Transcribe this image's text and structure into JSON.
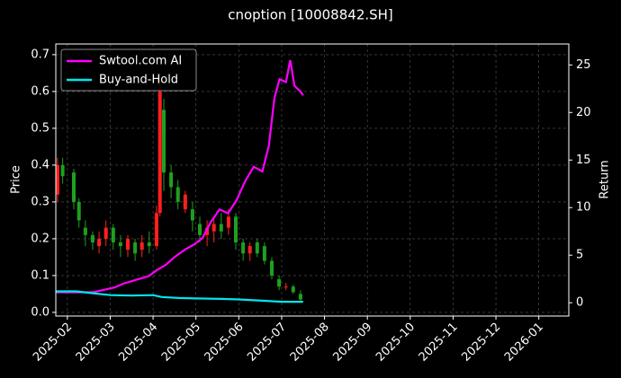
{
  "chart_data": {
    "type": "candlestick",
    "title": "cnoption [10008842.SH]",
    "y_label": "Price",
    "y2_label": "Return",
    "xlim": [
      -0.27,
      11.7
    ],
    "xticks": [
      {
        "value": 0,
        "label": "2025-02"
      },
      {
        "value": 1,
        "label": "2025-03"
      },
      {
        "value": 2,
        "label": "2025-04"
      },
      {
        "value": 3,
        "label": "2025-05"
      },
      {
        "value": 4,
        "label": "2025-06"
      },
      {
        "value": 5,
        "label": "2025-07"
      },
      {
        "value": 6,
        "label": "2025-08"
      },
      {
        "value": 7,
        "label": "2025-09"
      },
      {
        "value": 8,
        "label": "2025-10"
      },
      {
        "value": 9,
        "label": "2025-11"
      },
      {
        "value": 10,
        "label": "2025-12"
      },
      {
        "value": 11,
        "label": "2026-01"
      }
    ],
    "ylim": [
      -0.01,
      0.729
    ],
    "yticks": [
      {
        "value": 0,
        "label": "0.0"
      },
      0.1,
      0.2,
      0.3,
      0.4,
      0.5,
      0.6,
      0.7
    ],
    "y2lim": [
      -1.4,
      27.2
    ],
    "y2ticks": [
      0,
      5,
      10,
      15,
      20,
      25
    ],
    "grid": true,
    "legend": "upper left",
    "up_color": "#ff2020",
    "down_color": "#1fa01f",
    "candles": {
      "x": [
        -0.23,
        -0.11,
        0.15,
        0.27,
        0.42,
        0.59,
        0.74,
        0.9,
        1.07,
        1.24,
        1.41,
        1.58,
        1.74,
        1.91,
        2.08,
        2.16,
        2.25,
        2.42,
        2.58,
        2.75,
        2.92,
        3.09,
        3.26,
        3.42,
        3.59,
        3.76,
        3.93,
        4.1,
        4.26,
        4.43,
        4.6,
        4.77,
        4.94,
        5.1,
        5.27,
        5.44
      ],
      "open": [
        0.32,
        0.4,
        0.38,
        0.3,
        0.23,
        0.21,
        0.18,
        0.2,
        0.23,
        0.19,
        0.17,
        0.19,
        0.17,
        0.19,
        0.18,
        0.27,
        0.55,
        0.38,
        0.34,
        0.28,
        0.28,
        0.24,
        0.21,
        0.22,
        0.24,
        0.23,
        0.26,
        0.19,
        0.16,
        0.19,
        0.18,
        0.14,
        0.09,
        0.07,
        0.07,
        0.05
      ],
      "high": [
        0.42,
        0.42,
        0.39,
        0.31,
        0.25,
        0.22,
        0.22,
        0.25,
        0.24,
        0.21,
        0.21,
        0.2,
        0.21,
        0.22,
        0.29,
        0.65,
        0.58,
        0.4,
        0.36,
        0.33,
        0.3,
        0.26,
        0.25,
        0.26,
        0.27,
        0.28,
        0.27,
        0.2,
        0.19,
        0.2,
        0.19,
        0.15,
        0.1,
        0.08,
        0.075,
        0.06
      ],
      "low": [
        0.3,
        0.35,
        0.28,
        0.23,
        0.18,
        0.17,
        0.16,
        0.18,
        0.17,
        0.15,
        0.15,
        0.14,
        0.15,
        0.16,
        0.17,
        0.26,
        0.33,
        0.31,
        0.28,
        0.27,
        0.22,
        0.19,
        0.18,
        0.19,
        0.2,
        0.21,
        0.17,
        0.14,
        0.14,
        0.15,
        0.13,
        0.09,
        0.06,
        0.06,
        0.05,
        0.03
      ],
      "close": [
        0.4,
        0.37,
        0.3,
        0.25,
        0.21,
        0.19,
        0.2,
        0.23,
        0.19,
        0.18,
        0.2,
        0.16,
        0.19,
        0.18,
        0.27,
        0.6,
        0.38,
        0.34,
        0.3,
        0.32,
        0.25,
        0.21,
        0.23,
        0.24,
        0.22,
        0.26,
        0.19,
        0.16,
        0.18,
        0.16,
        0.14,
        0.1,
        0.07,
        0.07,
        0.055,
        0.035
      ]
    },
    "series": [
      {
        "name": "Swtool.com AI",
        "color": "#ff00ff",
        "axis": "y2",
        "x": [
          -0.27,
          0.2,
          0.6,
          0.9,
          1.1,
          1.3,
          1.6,
          1.9,
          2.08,
          2.3,
          2.5,
          2.75,
          2.95,
          3.15,
          3.35,
          3.55,
          3.75,
          3.95,
          4.15,
          4.35,
          4.55,
          4.7,
          4.83,
          4.95,
          5.1,
          5.2,
          5.3,
          5.44,
          5.5
        ],
        "values": [
          1.1,
          1.1,
          1.1,
          1.4,
          1.6,
          2.0,
          2.4,
          2.8,
          3.4,
          4.0,
          4.8,
          5.6,
          6.1,
          6.8,
          8.5,
          9.8,
          9.4,
          10.8,
          12.8,
          14.3,
          13.8,
          16.5,
          21.5,
          23.5,
          23.2,
          25.5,
          22.8,
          22.2,
          21.8
        ]
      },
      {
        "name": "Buy-and-Hold",
        "color": "#00e5ee",
        "axis": "y2",
        "x": [
          -0.27,
          0.2,
          0.6,
          1.0,
          1.5,
          2.0,
          2.2,
          2.6,
          3.0,
          3.6,
          4.0,
          4.6,
          5.0,
          5.5
        ],
        "values": [
          1.2,
          1.2,
          1.0,
          0.8,
          0.75,
          0.8,
          0.6,
          0.5,
          0.45,
          0.4,
          0.35,
          0.2,
          0.1,
          0.1
        ]
      }
    ]
  }
}
